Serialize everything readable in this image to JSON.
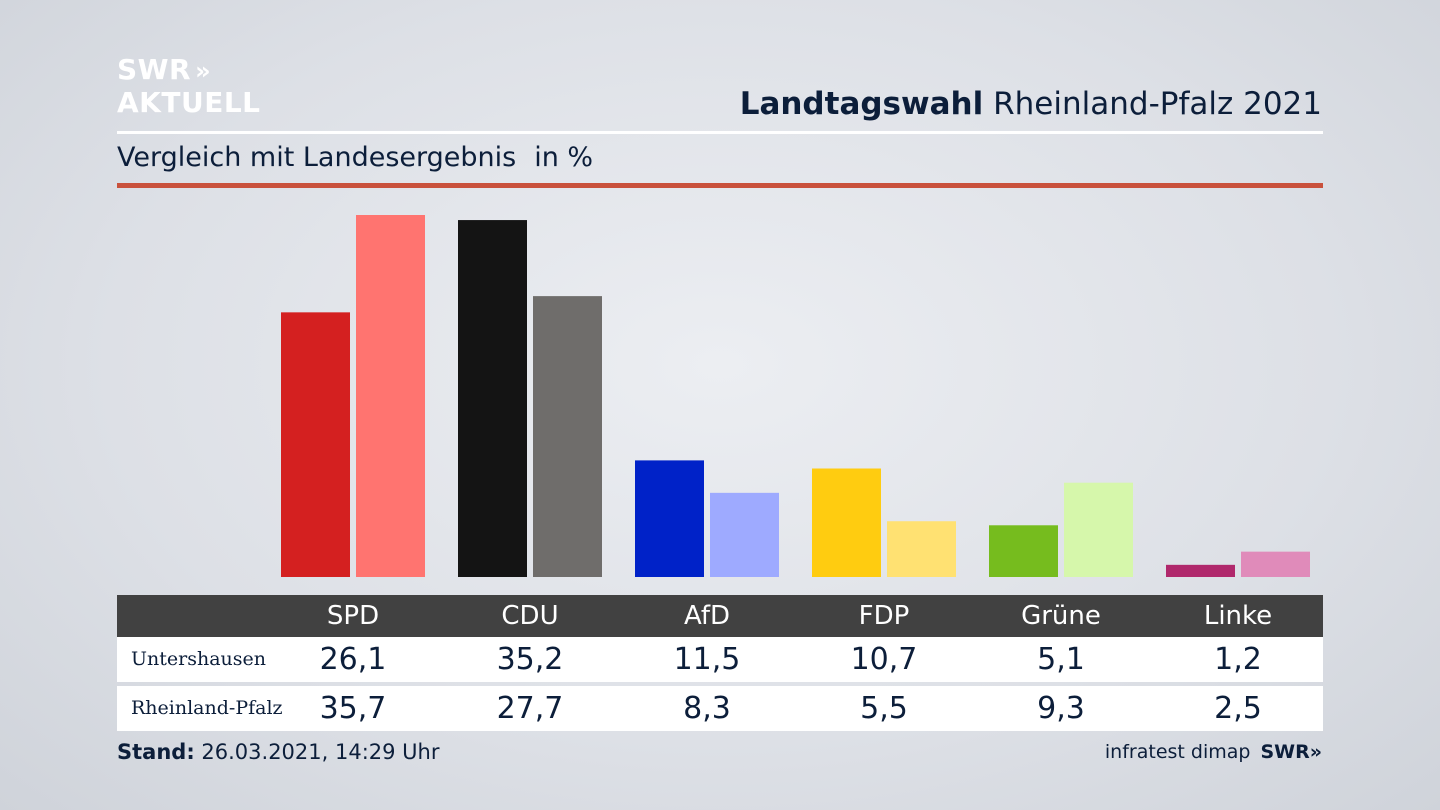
{
  "header": {
    "logo_line1": "SWR",
    "logo_arrows": "»",
    "logo_line2": "AKTUELL",
    "title_bold": "Landtagswahl",
    "title_rest": " Rheinland-Pfalz 2021",
    "subtitle": "Vergleich mit Landesergebnis",
    "unit": "in %"
  },
  "chart_data": {
    "type": "bar",
    "categories": [
      "SPD",
      "CDU",
      "AfD",
      "FDP",
      "Grüne",
      "Linke"
    ],
    "series": [
      {
        "name": "Untershausen",
        "values": [
          26.1,
          35.2,
          11.5,
          10.7,
          5.1,
          1.2
        ],
        "colors": [
          "#d42020",
          "#141414",
          "#0022c8",
          "#ffcc10",
          "#76bc1e",
          "#b0286c"
        ]
      },
      {
        "name": "Rheinland-Pfalz",
        "values": [
          35.7,
          27.7,
          8.3,
          5.5,
          9.3,
          2.5
        ],
        "colors": [
          "#ff7470",
          "#6f6d6b",
          "#9eaaff",
          "#ffe172",
          "#d6f7ab",
          "#e08bba"
        ]
      }
    ],
    "value_labels": [
      [
        "26,1",
        "35,2",
        "11,5",
        "10,7",
        "5,1",
        "1,2"
      ],
      [
        "35,7",
        "27,7",
        "8,3",
        "5,5",
        "9,3",
        "2,5"
      ]
    ],
    "ylim": [
      0,
      35.7
    ],
    "grid": false
  },
  "footer": {
    "stand_label": "Stand:",
    "stand_value": " 26.03.2021, 14:29 Uhr",
    "source": "infratest dimap",
    "brand": "SWR»"
  }
}
